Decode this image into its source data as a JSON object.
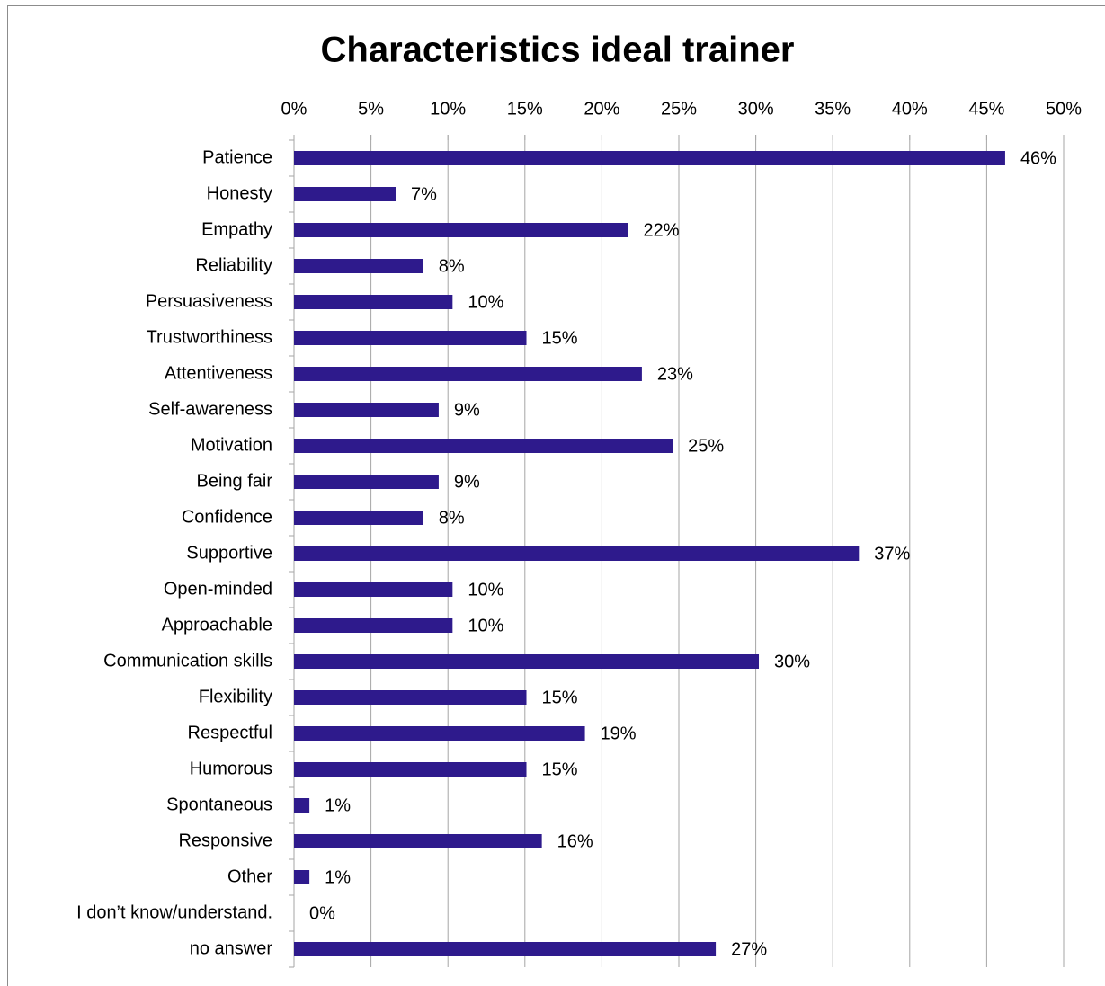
{
  "chart_data": {
    "type": "bar",
    "orientation": "horizontal",
    "title": "Characteristics ideal trainer",
    "categories": [
      "Patience",
      "Honesty",
      "Empathy",
      "Reliability",
      "Persuasiveness",
      "Trustworthiness",
      "Attentiveness",
      "Self-awareness",
      "Motivation",
      "Being fair",
      "Confidence",
      "Supportive",
      "Open-minded",
      "Approachable",
      "Communication skills",
      "Flexibility",
      "Respectful",
      "Humorous",
      "Spontaneous",
      "Responsive",
      "Other",
      "I don’t know/understand.",
      "no answer"
    ],
    "values": [
      46.2,
      6.6,
      21.7,
      8.4,
      10.3,
      15.1,
      22.6,
      9.4,
      24.6,
      9.4,
      8.4,
      36.7,
      10.3,
      10.3,
      30.2,
      15.1,
      18.9,
      15.1,
      1.0,
      16.1,
      1.0,
      0,
      27.4
    ],
    "value_labels": [
      "46%",
      "7%",
      "22%",
      "8%",
      "10%",
      "15%",
      "23%",
      "9%",
      "25%",
      "9%",
      "8%",
      "37%",
      "10%",
      "10%",
      "30%",
      "15%",
      "19%",
      "15%",
      "1%",
      "16%",
      "1%",
      "0%",
      "27%"
    ],
    "color": "#2e1a8c",
    "xlim": [
      0,
      50
    ],
    "xticks": [
      {
        "value": 0,
        "label": "0%"
      },
      {
        "value": 5,
        "label": "5%"
      },
      {
        "value": 10,
        "label": "10%"
      },
      {
        "value": 15,
        "label": "15%"
      },
      {
        "value": 20,
        "label": "20%"
      },
      {
        "value": 25,
        "label": "25%"
      },
      {
        "value": 30,
        "label": "30%"
      },
      {
        "value": 35,
        "label": "35%"
      },
      {
        "value": 40,
        "label": "40%"
      },
      {
        "value": 45,
        "label": "45%"
      },
      {
        "value": 50,
        "label": "50%"
      }
    ],
    "grid": true
  }
}
